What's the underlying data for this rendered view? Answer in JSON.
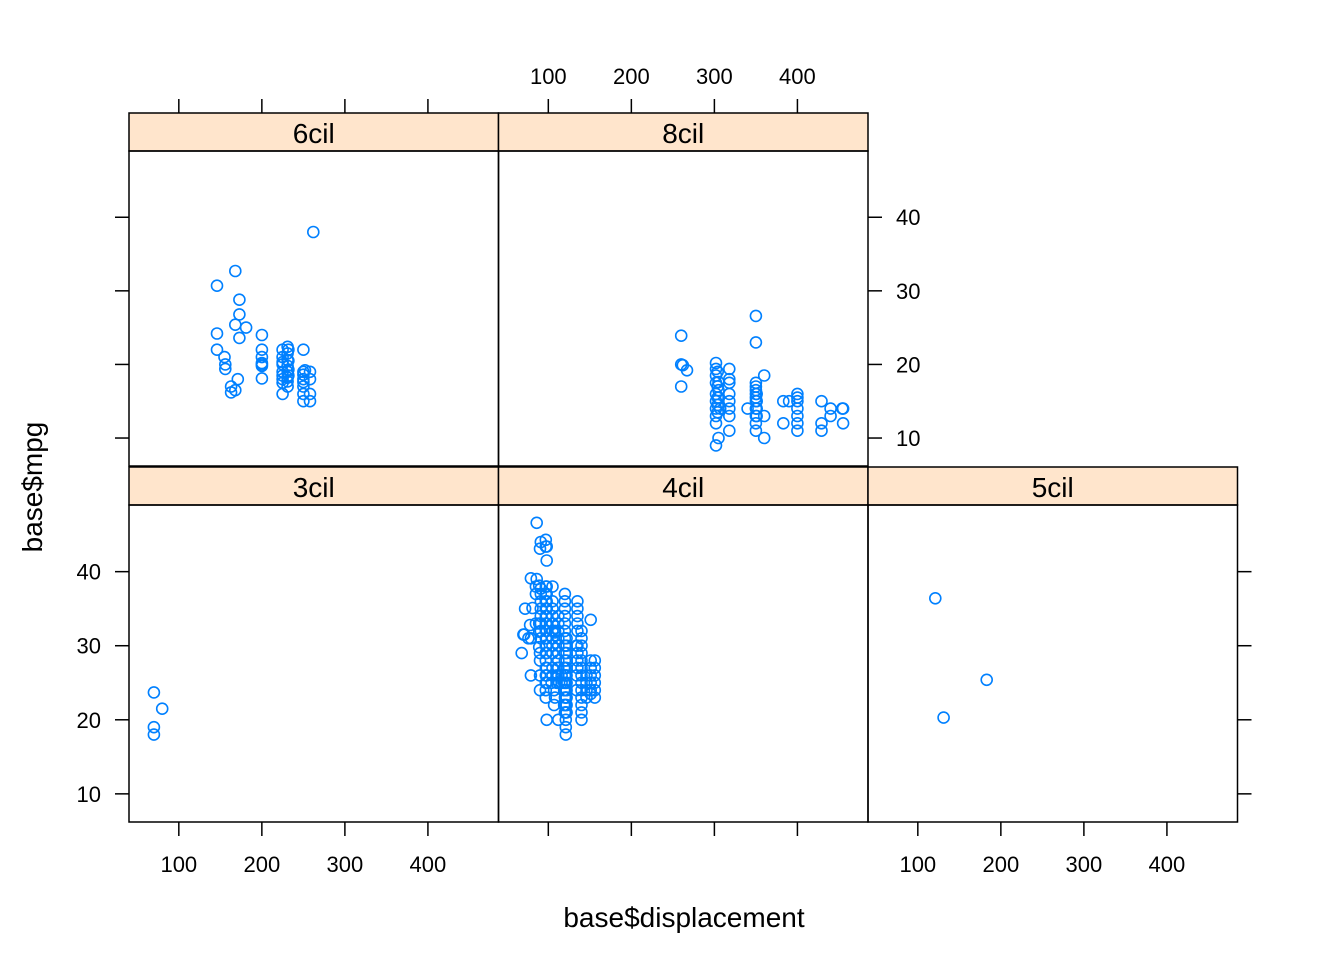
{
  "chart_data": {
    "type": "scatter",
    "layout": "lattice-conditioned",
    "xlabel": "base$displacement",
    "ylabel": "base$mpg",
    "xlim": [
      40,
      485
    ],
    "ylim": [
      6.2,
      49
    ],
    "xticks": [
      100,
      200,
      300,
      400
    ],
    "yticks": [
      10,
      20,
      30,
      40
    ],
    "colors": {
      "points": "#0080ff",
      "strip": "#ffe5cc",
      "frame": "#000000"
    },
    "panels": [
      {
        "label": "6cil",
        "points": [
          [
            146,
            30.7
          ],
          [
            146,
            24.2
          ],
          [
            146,
            22
          ],
          [
            155,
            21
          ],
          [
            156,
            20
          ],
          [
            156,
            19.4
          ],
          [
            163,
            17
          ],
          [
            163,
            16.2
          ],
          [
            168,
            25.4
          ],
          [
            168,
            32.7
          ],
          [
            168,
            16.5
          ],
          [
            171,
            18
          ],
          [
            173,
            23.6
          ],
          [
            173,
            28.8
          ],
          [
            173,
            26.8
          ],
          [
            181,
            25
          ],
          [
            200,
            24
          ],
          [
            200,
            22
          ],
          [
            200,
            21
          ],
          [
            200,
            20.2
          ],
          [
            200,
            20
          ],
          [
            200,
            19.8
          ],
          [
            200,
            18.1
          ],
          [
            225,
            22
          ],
          [
            225,
            21
          ],
          [
            225,
            20.3
          ],
          [
            225,
            20
          ],
          [
            225,
            19
          ],
          [
            225,
            18.5
          ],
          [
            225,
            18
          ],
          [
            225,
            17.5
          ],
          [
            225,
            16
          ],
          [
            231,
            22.4
          ],
          [
            231,
            21.5
          ],
          [
            231,
            20.6
          ],
          [
            231,
            19.8
          ],
          [
            231,
            19
          ],
          [
            231,
            18.2
          ],
          [
            231,
            17.7
          ],
          [
            231,
            17
          ],
          [
            232,
            22
          ],
          [
            232,
            20.5
          ],
          [
            232,
            19.3
          ],
          [
            232,
            18.5
          ],
          [
            250,
            22
          ],
          [
            250,
            19
          ],
          [
            250,
            18.6
          ],
          [
            250,
            18
          ],
          [
            250,
            17.6
          ],
          [
            250,
            17
          ],
          [
            250,
            16
          ],
          [
            250,
            15
          ],
          [
            252,
            19.2
          ],
          [
            258,
            19
          ],
          [
            258,
            18
          ],
          [
            258,
            16
          ],
          [
            258,
            15
          ],
          [
            262,
            38
          ]
        ]
      },
      {
        "label": "8cil",
        "points": [
          [
            260,
            17
          ],
          [
            260,
            20
          ],
          [
            260,
            23.9
          ],
          [
            262,
            19.9
          ],
          [
            267,
            19.2
          ],
          [
            302,
            20.2
          ],
          [
            302,
            19.4
          ],
          [
            302,
            18.5
          ],
          [
            302,
            17.5
          ],
          [
            302,
            16
          ],
          [
            302,
            15
          ],
          [
            302,
            14
          ],
          [
            302,
            13
          ],
          [
            302,
            12
          ],
          [
            302,
            9
          ],
          [
            304,
            19
          ],
          [
            304,
            17
          ],
          [
            304,
            15.5
          ],
          [
            304,
            14.5
          ],
          [
            304,
            13.5
          ],
          [
            305,
            17.6
          ],
          [
            305,
            16.5
          ],
          [
            305,
            15.5
          ],
          [
            305,
            10
          ],
          [
            307,
            14
          ],
          [
            318,
            19.4
          ],
          [
            318,
            18
          ],
          [
            318,
            17.5
          ],
          [
            318,
            16
          ],
          [
            318,
            15
          ],
          [
            318,
            14
          ],
          [
            318,
            13
          ],
          [
            318,
            11
          ],
          [
            340,
            14
          ],
          [
            350,
            26.6
          ],
          [
            350,
            23
          ],
          [
            350,
            17.5
          ],
          [
            350,
            17
          ],
          [
            350,
            16.5
          ],
          [
            350,
            16
          ],
          [
            350,
            15.5
          ],
          [
            350,
            15
          ],
          [
            350,
            14
          ],
          [
            350,
            13
          ],
          [
            350,
            12
          ],
          [
            350,
            11
          ],
          [
            351,
            16
          ],
          [
            351,
            15
          ],
          [
            351,
            14
          ],
          [
            351,
            13
          ],
          [
            360,
            18.5
          ],
          [
            360,
            13
          ],
          [
            360,
            10
          ],
          [
            383,
            15
          ],
          [
            383,
            12
          ],
          [
            390,
            15
          ],
          [
            400,
            16
          ],
          [
            400,
            15.5
          ],
          [
            400,
            15
          ],
          [
            400,
            14
          ],
          [
            400,
            13
          ],
          [
            400,
            12
          ],
          [
            400,
            11
          ],
          [
            429,
            15
          ],
          [
            429,
            12
          ],
          [
            429,
            11
          ],
          [
            440,
            14
          ],
          [
            440,
            13
          ],
          [
            454,
            14
          ],
          [
            455,
            14
          ],
          [
            455,
            12
          ]
        ]
      },
      {
        "label": "3cil",
        "points": [
          [
            70,
            23.7
          ],
          [
            70,
            19
          ],
          [
            70,
            18
          ],
          [
            80,
            21.5
          ]
        ]
      },
      {
        "label": "4cil",
        "points": [
          [
            68,
            29
          ],
          [
            70,
            31.5
          ],
          [
            71,
            31.5
          ],
          [
            72,
            35
          ],
          [
            76,
            31
          ],
          [
            78,
            32.8
          ],
          [
            79,
            26
          ],
          [
            79,
            31
          ],
          [
            79,
            39.1
          ],
          [
            81,
            35.1
          ],
          [
            85,
            38
          ],
          [
            85,
            37
          ],
          [
            85,
            33
          ],
          [
            86,
            39
          ],
          [
            86,
            46.6
          ],
          [
            89,
            33
          ],
          [
            89,
            38.1
          ],
          [
            89,
            29.8
          ],
          [
            89,
            31.9
          ],
          [
            90,
            24
          ],
          [
            90,
            26
          ],
          [
            90,
            28
          ],
          [
            90,
            29
          ],
          [
            90,
            43.1
          ],
          [
            91,
            31
          ],
          [
            91,
            32
          ],
          [
            91,
            33
          ],
          [
            91,
            34
          ],
          [
            91,
            35
          ],
          [
            91,
            36
          ],
          [
            91,
            37
          ],
          [
            91,
            37.7
          ],
          [
            91,
            44
          ],
          [
            97,
            24
          ],
          [
            97,
            25
          ],
          [
            97,
            26
          ],
          [
            97,
            27
          ],
          [
            97,
            28
          ],
          [
            97,
            29
          ],
          [
            97,
            30
          ],
          [
            97,
            31
          ],
          [
            97,
            32
          ],
          [
            97,
            33
          ],
          [
            97,
            34
          ],
          [
            97,
            35
          ],
          [
            97,
            36
          ],
          [
            97,
            37
          ],
          [
            97,
            38
          ],
          [
            97,
            43.4
          ],
          [
            97,
            44.3
          ],
          [
            97,
            23
          ],
          [
            98,
            25
          ],
          [
            98,
            26
          ],
          [
            98,
            27
          ],
          [
            98,
            29
          ],
          [
            98,
            30
          ],
          [
            98,
            31
          ],
          [
            98,
            32
          ],
          [
            98,
            33
          ],
          [
            98,
            34
          ],
          [
            98,
            35
          ],
          [
            98,
            36
          ],
          [
            98,
            37
          ],
          [
            98,
            38
          ],
          [
            98,
            41.5
          ],
          [
            98,
            43.4
          ],
          [
            98,
            20
          ],
          [
            104,
            25
          ],
          [
            105,
            26
          ],
          [
            105,
            27
          ],
          [
            105,
            29
          ],
          [
            105,
            30
          ],
          [
            105,
            31
          ],
          [
            105,
            32
          ],
          [
            105,
            33
          ],
          [
            105,
            34
          ],
          [
            105,
            35
          ],
          [
            105,
            36
          ],
          [
            105,
            38
          ],
          [
            107,
            24
          ],
          [
            107,
            22
          ],
          [
            108,
            23
          ],
          [
            108,
            31.8
          ],
          [
            108,
            32
          ],
          [
            110,
            25
          ],
          [
            110,
            26
          ],
          [
            111,
            27
          ],
          [
            112,
            26
          ],
          [
            112,
            27
          ],
          [
            112,
            28
          ],
          [
            112,
            29
          ],
          [
            112,
            30
          ],
          [
            112,
            31
          ],
          [
            112,
            32
          ],
          [
            112,
            33
          ],
          [
            112,
            34
          ],
          [
            112,
            20
          ],
          [
            113,
            25
          ],
          [
            116,
            25
          ],
          [
            116,
            26
          ],
          [
            119,
            24
          ],
          [
            119,
            22
          ],
          [
            119,
            25
          ],
          [
            119,
            27
          ],
          [
            120,
            21
          ],
          [
            120,
            22
          ],
          [
            120,
            23
          ],
          [
            120,
            24
          ],
          [
            120,
            25
          ],
          [
            120,
            26
          ],
          [
            120,
            27
          ],
          [
            120,
            28
          ],
          [
            120,
            29
          ],
          [
            120,
            30
          ],
          [
            120,
            31
          ],
          [
            120,
            32
          ],
          [
            120,
            33
          ],
          [
            120,
            34
          ],
          [
            120,
            35
          ],
          [
            120,
            36
          ],
          [
            120,
            37
          ],
          [
            121,
            18
          ],
          [
            121,
            19
          ],
          [
            121,
            20
          ],
          [
            121,
            21
          ],
          [
            121,
            22
          ],
          [
            121,
            23
          ],
          [
            121,
            24
          ],
          [
            121,
            25
          ],
          [
            121,
            26
          ],
          [
            122,
            21
          ],
          [
            122,
            22
          ],
          [
            122,
            23
          ],
          [
            122,
            24
          ],
          [
            122,
            25
          ],
          [
            122,
            26
          ],
          [
            122,
            27
          ],
          [
            122,
            28
          ],
          [
            122,
            29
          ],
          [
            122,
            30
          ],
          [
            122,
            31
          ],
          [
            134,
            24
          ],
          [
            134,
            26
          ],
          [
            134,
            30
          ],
          [
            135,
            27
          ],
          [
            135,
            28
          ],
          [
            135,
            29
          ],
          [
            135,
            30
          ],
          [
            135,
            32
          ],
          [
            135,
            33
          ],
          [
            135,
            34
          ],
          [
            135,
            35
          ],
          [
            135,
            36
          ],
          [
            140,
            20
          ],
          [
            140,
            21
          ],
          [
            140,
            22
          ],
          [
            140,
            23
          ],
          [
            140,
            24
          ],
          [
            140,
            25
          ],
          [
            140,
            26
          ],
          [
            140,
            27
          ],
          [
            140,
            28
          ],
          [
            140,
            29
          ],
          [
            140,
            30
          ],
          [
            140,
            31
          ],
          [
            140,
            32
          ],
          [
            146,
            23
          ],
          [
            146,
            24
          ],
          [
            146,
            25
          ],
          [
            146,
            26
          ],
          [
            151,
            24
          ],
          [
            151,
            25
          ],
          [
            151,
            26
          ],
          [
            151,
            27
          ],
          [
            151,
            28
          ],
          [
            151,
            33.5
          ],
          [
            151,
            23.5
          ],
          [
            156,
            23
          ],
          [
            156,
            24
          ],
          [
            156,
            25
          ],
          [
            156,
            26
          ],
          [
            156,
            27
          ],
          [
            156,
            28
          ]
        ]
      },
      {
        "label": "5cil",
        "points": [
          [
            121,
            36.4
          ],
          [
            131,
            20.3
          ],
          [
            183,
            25.4
          ]
        ]
      }
    ]
  }
}
